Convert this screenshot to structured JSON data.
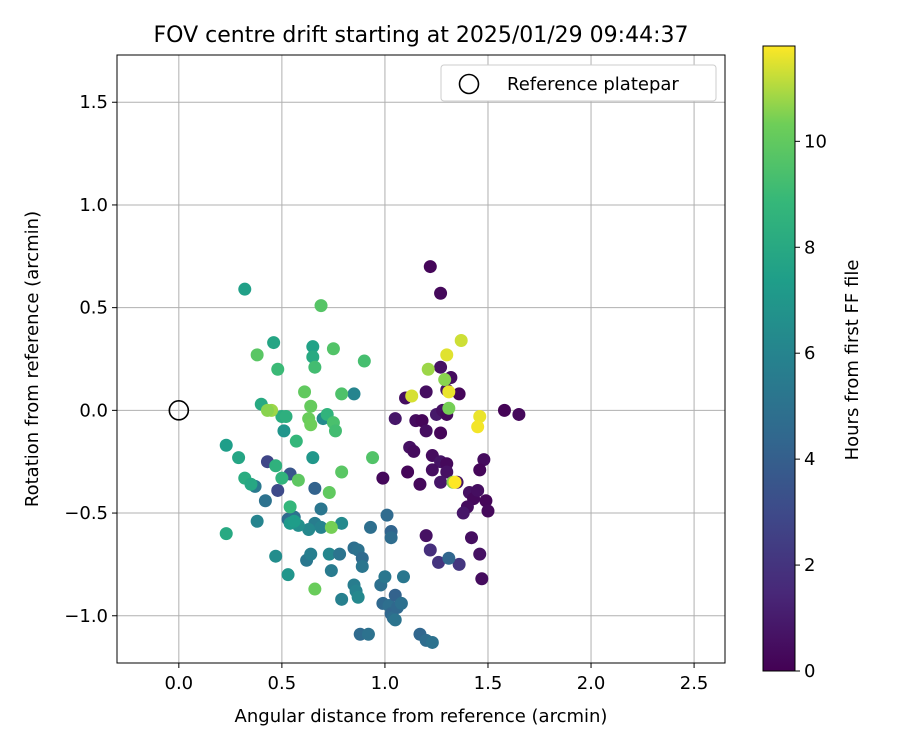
{
  "chart_data": {
    "type": "scatter",
    "title": "FOV centre drift starting at 2025/01/29 09:44:37",
    "xlabel": "Angular distance from reference (arcmin)",
    "ylabel": "Rotation from reference (arcmin)",
    "xlim": [
      -0.3,
      2.65
    ],
    "ylim": [
      -1.23,
      1.73
    ],
    "xticks": [
      0.0,
      0.5,
      1.0,
      1.5,
      2.0,
      2.5
    ],
    "xtick_labels": [
      "0.0",
      "0.5",
      "1.0",
      "1.5",
      "2.0",
      "2.5"
    ],
    "yticks": [
      -1.0,
      -0.5,
      0.0,
      0.5,
      1.0,
      1.5
    ],
    "ytick_labels": [
      "−1.0",
      "−0.5",
      "0.0",
      "0.5",
      "1.0",
      "1.5"
    ],
    "grid": true,
    "legend": {
      "position": "top-right",
      "entries": [
        "Reference platepar"
      ]
    },
    "reference_point": {
      "x": 0.0,
      "y": 0.0
    },
    "colorbar": {
      "label": "Hours from first FF file",
      "range": [
        0,
        11.8
      ],
      "ticks": [
        0,
        2,
        4,
        6,
        8,
        10
      ],
      "tick_labels": [
        "0",
        "2",
        "4",
        "6",
        "8",
        "10"
      ],
      "colormap": "viridis"
    },
    "series": [
      {
        "points": [
          {
            "x": 1.22,
            "y": 0.7,
            "c": 0.2
          },
          {
            "x": 1.27,
            "y": 0.57,
            "c": 0.3
          },
          {
            "x": 1.2,
            "y": 0.09,
            "c": 0.5
          },
          {
            "x": 1.27,
            "y": 0.21,
            "c": 0.6
          },
          {
            "x": 1.32,
            "y": 0.16,
            "c": 0.4
          },
          {
            "x": 1.36,
            "y": 0.08,
            "c": 0.2
          },
          {
            "x": 1.3,
            "y": 0.1,
            "c": 0.7
          },
          {
            "x": 1.58,
            "y": 0.0,
            "c": 0.1
          },
          {
            "x": 1.65,
            "y": -0.02,
            "c": 0.3
          },
          {
            "x": 1.1,
            "y": 0.06,
            "c": 0.5
          },
          {
            "x": 1.15,
            "y": -0.05,
            "c": 0.4
          },
          {
            "x": 1.18,
            "y": -0.05,
            "c": 0.2
          },
          {
            "x": 1.25,
            "y": -0.02,
            "c": 0.9
          },
          {
            "x": 1.28,
            "y": 0.0,
            "c": 0.6
          },
          {
            "x": 1.3,
            "y": -0.02,
            "c": 0.3
          },
          {
            "x": 1.05,
            "y": -0.04,
            "c": 0.8
          },
          {
            "x": 1.2,
            "y": -0.1,
            "c": 0.5
          },
          {
            "x": 1.27,
            "y": -0.11,
            "c": 0.2
          },
          {
            "x": 1.23,
            "y": -0.22,
            "c": 0.4
          },
          {
            "x": 1.27,
            "y": -0.25,
            "c": 0.7
          },
          {
            "x": 1.3,
            "y": -0.26,
            "c": 0.3
          },
          {
            "x": 1.12,
            "y": -0.18,
            "c": 0.6
          },
          {
            "x": 1.14,
            "y": -0.2,
            "c": 0.4
          },
          {
            "x": 1.11,
            "y": -0.3,
            "c": 0.2
          },
          {
            "x": 1.23,
            "y": -0.29,
            "c": 0.5
          },
          {
            "x": 1.3,
            "y": -0.3,
            "c": 0.6
          },
          {
            "x": 1.27,
            "y": -0.35,
            "c": 0.8
          },
          {
            "x": 1.17,
            "y": -0.36,
            "c": 0.3
          },
          {
            "x": 1.48,
            "y": -0.24,
            "c": 0.4
          },
          {
            "x": 1.46,
            "y": -0.29,
            "c": 0.2
          },
          {
            "x": 1.35,
            "y": -0.35,
            "c": 0.7
          },
          {
            "x": 1.41,
            "y": -0.4,
            "c": 0.6
          },
          {
            "x": 1.43,
            "y": -0.43,
            "c": 0.3
          },
          {
            "x": 1.45,
            "y": -0.39,
            "c": 0.5
          },
          {
            "x": 1.49,
            "y": -0.44,
            "c": 0.2
          },
          {
            "x": 1.4,
            "y": -0.47,
            "c": 0.4
          },
          {
            "x": 1.38,
            "y": -0.5,
            "c": 0.8
          },
          {
            "x": 1.5,
            "y": -0.49,
            "c": 0.3
          },
          {
            "x": 1.42,
            "y": -0.62,
            "c": 0.5
          },
          {
            "x": 1.46,
            "y": -0.7,
            "c": 0.6
          },
          {
            "x": 1.47,
            "y": -0.82,
            "c": 0.4
          },
          {
            "x": 0.99,
            "y": -0.33,
            "c": 0.3
          },
          {
            "x": 1.2,
            "y": -0.61,
            "c": 0.6
          },
          {
            "x": 1.22,
            "y": -0.68,
            "c": 1.8
          },
          {
            "x": 1.26,
            "y": -0.74,
            "c": 2.0
          },
          {
            "x": 1.36,
            "y": -0.75,
            "c": 2.1
          },
          {
            "x": 0.43,
            "y": -0.25,
            "c": 2.8
          },
          {
            "x": 0.48,
            "y": -0.39,
            "c": 3.0
          },
          {
            "x": 0.54,
            "y": -0.31,
            "c": 3.5
          },
          {
            "x": 1.31,
            "y": -0.72,
            "c": 4.4
          },
          {
            "x": 0.66,
            "y": -0.38,
            "c": 4.2
          },
          {
            "x": 0.42,
            "y": -0.44,
            "c": 5.0
          },
          {
            "x": 0.37,
            "y": -0.37,
            "c": 5.4
          },
          {
            "x": 0.53,
            "y": -0.53,
            "c": 4.6
          },
          {
            "x": 0.56,
            "y": -0.52,
            "c": 5.0
          },
          {
            "x": 0.69,
            "y": -0.48,
            "c": 5.2
          },
          {
            "x": 0.66,
            "y": -0.55,
            "c": 5.6
          },
          {
            "x": 0.69,
            "y": -0.57,
            "c": 5.9
          },
          {
            "x": 0.63,
            "y": -0.58,
            "c": 6.2
          },
          {
            "x": 0.58,
            "y": -0.56,
            "c": 6.6
          },
          {
            "x": 0.38,
            "y": -0.54,
            "c": 6.0
          },
          {
            "x": 0.47,
            "y": -0.71,
            "c": 6.5
          },
          {
            "x": 0.53,
            "y": -0.8,
            "c": 6.9
          },
          {
            "x": 0.62,
            "y": -0.73,
            "c": 5.3
          },
          {
            "x": 0.64,
            "y": -0.7,
            "c": 5.7
          },
          {
            "x": 0.73,
            "y": -0.7,
            "c": 6.1
          },
          {
            "x": 0.74,
            "y": -0.78,
            "c": 5.5
          },
          {
            "x": 0.78,
            "y": -0.7,
            "c": 5.1
          },
          {
            "x": 0.79,
            "y": -0.92,
            "c": 5.8
          },
          {
            "x": 0.79,
            "y": -0.55,
            "c": 6.3
          },
          {
            "x": 0.85,
            "y": -0.67,
            "c": 4.8
          },
          {
            "x": 0.87,
            "y": -0.68,
            "c": 5.0
          },
          {
            "x": 0.89,
            "y": -0.72,
            "c": 4.6
          },
          {
            "x": 0.89,
            "y": -0.76,
            "c": 5.2
          },
          {
            "x": 0.85,
            "y": -0.85,
            "c": 5.6
          },
          {
            "x": 0.86,
            "y": -0.88,
            "c": 5.9
          },
          {
            "x": 0.87,
            "y": -0.91,
            "c": 6.2
          },
          {
            "x": 0.88,
            "y": -1.09,
            "c": 4.6
          },
          {
            "x": 0.92,
            "y": -1.09,
            "c": 5.0
          },
          {
            "x": 0.93,
            "y": -0.57,
            "c": 4.8
          },
          {
            "x": 0.98,
            "y": -0.85,
            "c": 4.9
          },
          {
            "x": 1.0,
            "y": -0.81,
            "c": 5.3
          },
          {
            "x": 0.99,
            "y": -0.94,
            "c": 4.5
          },
          {
            "x": 1.02,
            "y": -0.95,
            "c": 4.8
          },
          {
            "x": 1.03,
            "y": -0.99,
            "c": 4.4
          },
          {
            "x": 1.04,
            "y": -1.01,
            "c": 4.7
          },
          {
            "x": 1.05,
            "y": -0.9,
            "c": 4.2
          },
          {
            "x": 1.06,
            "y": -0.96,
            "c": 4.5
          },
          {
            "x": 1.08,
            "y": -0.94,
            "c": 4.9
          },
          {
            "x": 1.05,
            "y": -1.02,
            "c": 5.1
          },
          {
            "x": 1.01,
            "y": -0.51,
            "c": 4.6
          },
          {
            "x": 1.03,
            "y": -0.59,
            "c": 4.3
          },
          {
            "x": 1.03,
            "y": -0.62,
            "c": 4.7
          },
          {
            "x": 1.09,
            "y": -0.81,
            "c": 5.3
          },
          {
            "x": 1.17,
            "y": -1.09,
            "c": 4.4
          },
          {
            "x": 1.2,
            "y": -1.12,
            "c": 4.7
          },
          {
            "x": 1.23,
            "y": -1.13,
            "c": 5.0
          },
          {
            "x": 0.85,
            "y": 0.08,
            "c": 6.0
          },
          {
            "x": 0.7,
            "y": -0.04,
            "c": 6.4
          },
          {
            "x": 0.51,
            "y": -0.1,
            "c": 6.9
          },
          {
            "x": 0.65,
            "y": -0.23,
            "c": 7.0
          },
          {
            "x": 0.23,
            "y": -0.17,
            "c": 7.4
          },
          {
            "x": 0.29,
            "y": -0.23,
            "c": 7.8
          },
          {
            "x": 0.23,
            "y": -0.6,
            "c": 8.0
          },
          {
            "x": 0.54,
            "y": -0.55,
            "c": 7.1
          },
          {
            "x": 0.56,
            "y": -0.54,
            "c": 7.3
          },
          {
            "x": 0.32,
            "y": 0.59,
            "c": 7.5
          },
          {
            "x": 0.46,
            "y": 0.33,
            "c": 7.8
          },
          {
            "x": 0.65,
            "y": 0.31,
            "c": 7.6
          },
          {
            "x": 0.65,
            "y": 0.26,
            "c": 8.0
          },
          {
            "x": 0.4,
            "y": 0.03,
            "c": 8.0
          },
          {
            "x": 0.5,
            "y": -0.03,
            "c": 8.2
          },
          {
            "x": 0.52,
            "y": -0.03,
            "c": 8.4
          },
          {
            "x": 0.72,
            "y": -0.02,
            "c": 8.6
          },
          {
            "x": 0.57,
            "y": -0.15,
            "c": 8.8
          },
          {
            "x": 0.47,
            "y": -0.27,
            "c": 8.5
          },
          {
            "x": 0.32,
            "y": -0.33,
            "c": 8.2
          },
          {
            "x": 0.5,
            "y": -0.33,
            "c": 8.6
          },
          {
            "x": 0.35,
            "y": -0.36,
            "c": 7.9
          },
          {
            "x": 0.54,
            "y": -0.47,
            "c": 8.8
          },
          {
            "x": 0.69,
            "y": 0.51,
            "c": 9.7
          },
          {
            "x": 0.38,
            "y": 0.27,
            "c": 9.8
          },
          {
            "x": 0.48,
            "y": 0.2,
            "c": 9.0
          },
          {
            "x": 0.66,
            "y": 0.21,
            "c": 9.2
          },
          {
            "x": 0.75,
            "y": 0.3,
            "c": 9.6
          },
          {
            "x": 0.9,
            "y": 0.24,
            "c": 9.3
          },
          {
            "x": 0.61,
            "y": 0.09,
            "c": 10.0
          },
          {
            "x": 0.79,
            "y": 0.08,
            "c": 9.5
          },
          {
            "x": 0.64,
            "y": 0.02,
            "c": 10.1
          },
          {
            "x": 0.63,
            "y": -0.04,
            "c": 10.2
          },
          {
            "x": 0.64,
            "y": -0.07,
            "c": 10.3
          },
          {
            "x": 0.75,
            "y": -0.06,
            "c": 9.4
          },
          {
            "x": 0.76,
            "y": -0.1,
            "c": 9.2
          },
          {
            "x": 0.45,
            "y": 0.0,
            "c": 10.8
          },
          {
            "x": 0.43,
            "y": 0.0,
            "c": 10.6
          },
          {
            "x": 0.94,
            "y": -0.23,
            "c": 9.6
          },
          {
            "x": 0.79,
            "y": -0.3,
            "c": 9.8
          },
          {
            "x": 0.58,
            "y": -0.34,
            "c": 9.9
          },
          {
            "x": 0.73,
            "y": -0.4,
            "c": 10.0
          },
          {
            "x": 0.74,
            "y": -0.57,
            "c": 10.4
          },
          {
            "x": 0.66,
            "y": -0.87,
            "c": 10.2
          },
          {
            "x": 1.21,
            "y": 0.2,
            "c": 10.8
          },
          {
            "x": 1.29,
            "y": 0.15,
            "c": 10.6
          },
          {
            "x": 1.31,
            "y": 0.01,
            "c": 10.4
          },
          {
            "x": 1.33,
            "y": -0.35,
            "c": 10.6
          },
          {
            "x": 1.37,
            "y": 0.34,
            "c": 11.3
          },
          {
            "x": 1.3,
            "y": 0.27,
            "c": 11.5
          },
          {
            "x": 1.31,
            "y": 0.09,
            "c": 11.6
          },
          {
            "x": 1.13,
            "y": 0.07,
            "c": 11.4
          },
          {
            "x": 1.46,
            "y": -0.03,
            "c": 11.6
          },
          {
            "x": 1.45,
            "y": -0.08,
            "c": 11.7
          },
          {
            "x": 1.34,
            "y": -0.35,
            "c": 11.8
          }
        ]
      }
    ]
  }
}
